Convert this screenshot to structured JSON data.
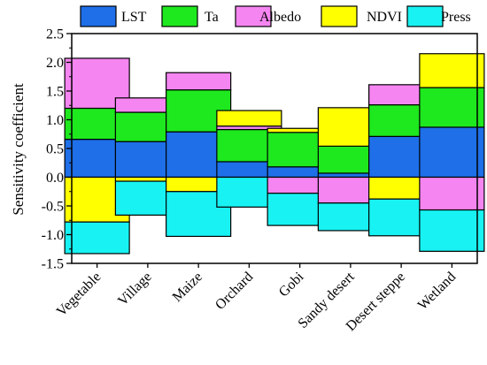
{
  "chart_data": {
    "type": "bar",
    "stacked": "diverging",
    "categories": [
      "Vegetable",
      "Village",
      "Maize",
      "Orchard",
      "Gobi",
      "Sandy desert",
      "Desert steppe",
      "Wetland"
    ],
    "ylabel": "Sensitivity coefficient",
    "xlabel": "",
    "ylim": [
      -1.5,
      2.5
    ],
    "yticks": [
      -1.5,
      -1.0,
      -0.5,
      0.0,
      0.5,
      1.0,
      1.5,
      2.0,
      2.5
    ],
    "ytick_labels": [
      "-1.5",
      "-1.0",
      "-0.5",
      "0.0",
      "0.5",
      "1.0",
      "1.5",
      "2.0",
      "2.5"
    ],
    "legend_position": "top",
    "grid": false,
    "series": [
      {
        "name": "LST",
        "color": "#1e6fe8",
        "values": [
          0.66,
          0.62,
          0.79,
          0.27,
          0.18,
          0.07,
          0.71,
          0.87
        ]
      },
      {
        "name": "Ta",
        "color": "#1ee81e",
        "values": [
          0.54,
          0.51,
          0.73,
          0.56,
          0.6,
          0.47,
          0.55,
          0.69
        ]
      },
      {
        "name": "Albedo",
        "color": "#f585f0",
        "values": [
          0.87,
          0.25,
          0.3,
          0.06,
          -0.28,
          -0.45,
          0.35,
          -0.57
        ]
      },
      {
        "name": "NDVI",
        "color": "#ffff00",
        "values": [
          -0.78,
          -0.07,
          -0.25,
          0.27,
          0.07,
          0.67,
          -0.38,
          0.59
        ]
      },
      {
        "name": "Press",
        "color": "#18f2f2",
        "values": [
          -0.55,
          -0.59,
          -0.78,
          -0.52,
          -0.56,
          -0.48,
          -0.64,
          -0.72
        ]
      }
    ]
  }
}
